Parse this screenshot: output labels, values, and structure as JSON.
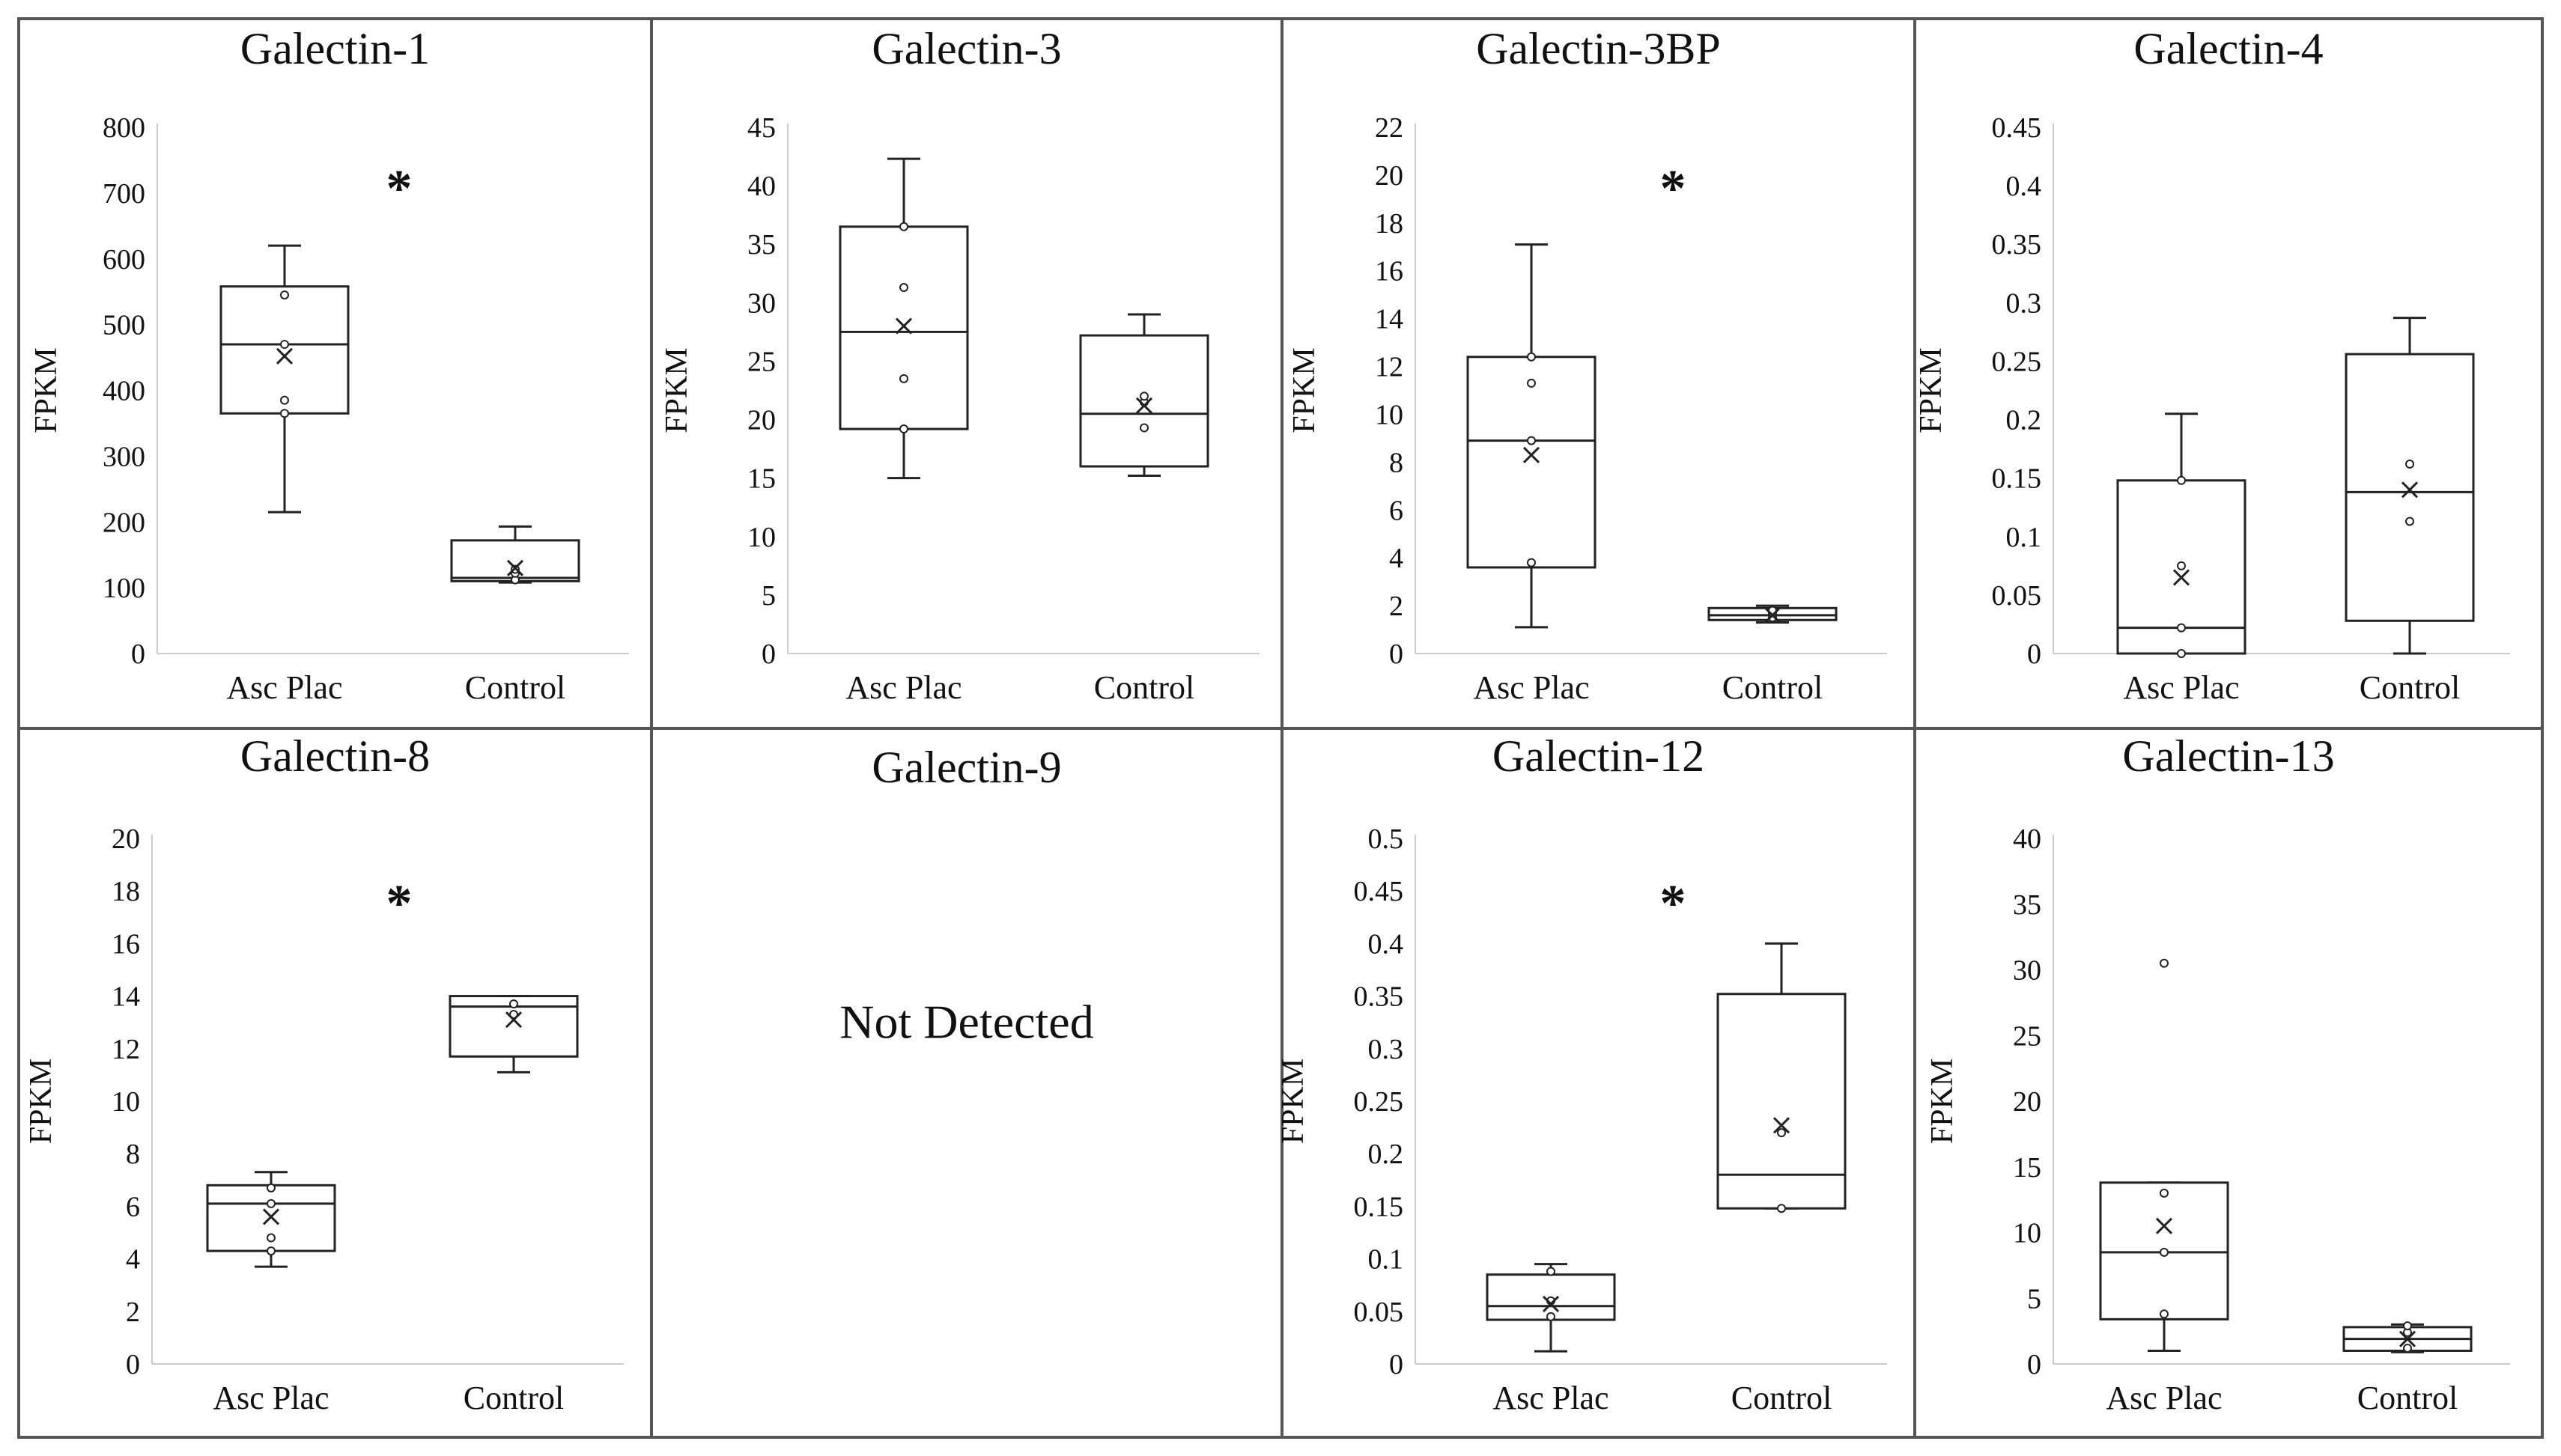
{
  "chart_data": [
    {
      "type": "box",
      "title": "Galectin-1",
      "ylabel": "FPKM",
      "ylim": [
        0,
        800
      ],
      "yticks": [
        0,
        100,
        200,
        300,
        400,
        500,
        600,
        700,
        800
      ],
      "yticklabels": [
        "0",
        "100",
        "200",
        "300",
        "400",
        "500",
        "600",
        "700",
        "800"
      ],
      "categories": [
        "Asc Plac",
        "Control"
      ],
      "boxes": [
        {
          "min": 215,
          "q1": 365,
          "median": 470,
          "q3": 558,
          "max": 620,
          "mean": 452,
          "points": [
            365,
            385,
            470,
            545
          ]
        },
        {
          "min": 108,
          "q1": 110,
          "median": 115,
          "q3": 172,
          "max": 193,
          "mean": 130,
          "points": [
            112,
            122,
            128
          ]
        }
      ],
      "significance": "*"
    },
    {
      "type": "box",
      "title": "Galectin-3",
      "ylabel": "FPKM",
      "ylim": [
        0,
        45
      ],
      "yticks": [
        0,
        5,
        10,
        15,
        20,
        25,
        30,
        35,
        40,
        45
      ],
      "yticklabels": [
        "0",
        "5",
        "10",
        "15",
        "20",
        "25",
        "30",
        "35",
        "40",
        "45"
      ],
      "categories": [
        "Asc Plac",
        "Control"
      ],
      "boxes": [
        {
          "min": 15,
          "q1": 19.2,
          "median": 27.5,
          "q3": 36.5,
          "max": 42.3,
          "mean": 28,
          "points": [
            19.2,
            23.5,
            31.3,
            36.5
          ]
        },
        {
          "min": 15.2,
          "q1": 16,
          "median": 20.5,
          "q3": 27.2,
          "max": 29,
          "mean": 21.2,
          "points": [
            19.3,
            21.5,
            22
          ]
        }
      ],
      "significance": ""
    },
    {
      "type": "box",
      "title": "Galectin-3BP",
      "ylabel": "FPKM",
      "ylim": [
        0,
        22
      ],
      "yticks": [
        0,
        2,
        4,
        6,
        8,
        10,
        12,
        14,
        16,
        18,
        20,
        22
      ],
      "yticklabels": [
        "0",
        "2",
        "4",
        "6",
        "8",
        "10",
        "12",
        "14",
        "16",
        "18",
        "20",
        "22"
      ],
      "categories": [
        "Asc Plac",
        "Control"
      ],
      "boxes": [
        {
          "min": 1.1,
          "q1": 3.6,
          "median": 8.9,
          "q3": 12.4,
          "max": 17.1,
          "mean": 8.3,
          "points": [
            3.8,
            8.9,
            11.3,
            12.4
          ]
        },
        {
          "min": 1.3,
          "q1": 1.4,
          "median": 1.6,
          "q3": 1.9,
          "max": 2.0,
          "mean": 1.6,
          "points": [
            1.5,
            1.7,
            1.8
          ]
        }
      ],
      "significance": "*"
    },
    {
      "type": "box",
      "title": "Galectin-4",
      "ylabel": "FPKM",
      "ylim": [
        0,
        0.45
      ],
      "yticks": [
        0,
        0.05,
        0.1,
        0.15,
        0.2,
        0.25,
        0.3,
        0.35,
        0.4,
        0.45
      ],
      "yticklabels": [
        "0",
        "0.05",
        "0.1",
        "0.15",
        "0.2",
        "0.25",
        "0.3",
        "0.35",
        "0.4",
        "0.45"
      ],
      "categories": [
        "Asc Plac",
        "Control"
      ],
      "boxes": [
        {
          "min": 0,
          "q1": 0,
          "median": 0.022,
          "q3": 0.148,
          "max": 0.205,
          "mean": 0.065,
          "points": [
            0,
            0.022,
            0.075,
            0.148
          ]
        },
        {
          "min": 0,
          "q1": 0.028,
          "median": 0.138,
          "q3": 0.256,
          "max": 0.287,
          "mean": 0.14,
          "points": [
            0.113,
            0.162
          ]
        }
      ],
      "significance": ""
    },
    {
      "type": "box",
      "title": "Galectin-8",
      "ylabel": "FPKM",
      "ylim": [
        0,
        20
      ],
      "yticks": [
        0,
        2,
        4,
        6,
        8,
        10,
        12,
        14,
        16,
        18,
        20
      ],
      "yticklabels": [
        "0",
        "2",
        "4",
        "6",
        "8",
        "10",
        "12",
        "14",
        "16",
        "18",
        "20"
      ],
      "categories": [
        "Asc Plac",
        "Control"
      ],
      "boxes": [
        {
          "min": 3.7,
          "q1": 4.3,
          "median": 6.1,
          "q3": 6.8,
          "max": 7.3,
          "mean": 5.6,
          "points": [
            4.3,
            4.8,
            6.1,
            6.7
          ]
        },
        {
          "min": 11.1,
          "q1": 11.7,
          "median": 13.6,
          "q3": 14.0,
          "max": 14.0,
          "mean": 13.1,
          "points": [
            13.3,
            13.7
          ]
        }
      ],
      "significance": "*"
    },
    {
      "type": "none",
      "title": "Galectin-9",
      "message": "Not Detected"
    },
    {
      "type": "box",
      "title": "Galectin-12",
      "ylabel": "FPKM",
      "ylim": [
        0,
        0.5
      ],
      "yticks": [
        0,
        0.05,
        0.1,
        0.15,
        0.2,
        0.25,
        0.3,
        0.35,
        0.4,
        0.45,
        0.5
      ],
      "yticklabels": [
        "0",
        "0.05",
        "0.1",
        "0.15",
        "0.2",
        "0.25",
        "0.3",
        "0.35",
        "0.4",
        "0.45",
        "0.5"
      ],
      "categories": [
        "Asc Plac",
        "Control"
      ],
      "boxes": [
        {
          "min": 0.012,
          "q1": 0.042,
          "median": 0.055,
          "q3": 0.085,
          "max": 0.095,
          "mean": 0.057,
          "points": [
            0.045,
            0.06,
            0.088
          ]
        },
        {
          "min": 0.148,
          "q1": 0.148,
          "median": 0.18,
          "q3": 0.352,
          "max": 0.4,
          "mean": 0.227,
          "points": [
            0.148,
            0.22
          ]
        }
      ],
      "significance": "*"
    },
    {
      "type": "box",
      "title": "Galectin-13",
      "ylabel": "FPKM",
      "ylim": [
        0,
        40
      ],
      "yticks": [
        0,
        5,
        10,
        15,
        20,
        25,
        30,
        35,
        40
      ],
      "yticklabels": [
        "0",
        "5",
        "10",
        "15",
        "20",
        "25",
        "30",
        "35",
        "40"
      ],
      "categories": [
        "Asc Plac",
        "Control"
      ],
      "boxes": [
        {
          "min": 1,
          "q1": 3.4,
          "median": 8.5,
          "q3": 13.8,
          "max": 13.8,
          "mean": 10.5,
          "points": [
            3.8,
            8.5,
            13,
            30.5
          ]
        },
        {
          "min": 0.9,
          "q1": 1.0,
          "median": 1.9,
          "q3": 2.8,
          "max": 3.0,
          "mean": 1.9,
          "points": [
            1.2,
            2.4,
            2.9
          ]
        }
      ],
      "significance": ""
    }
  ]
}
